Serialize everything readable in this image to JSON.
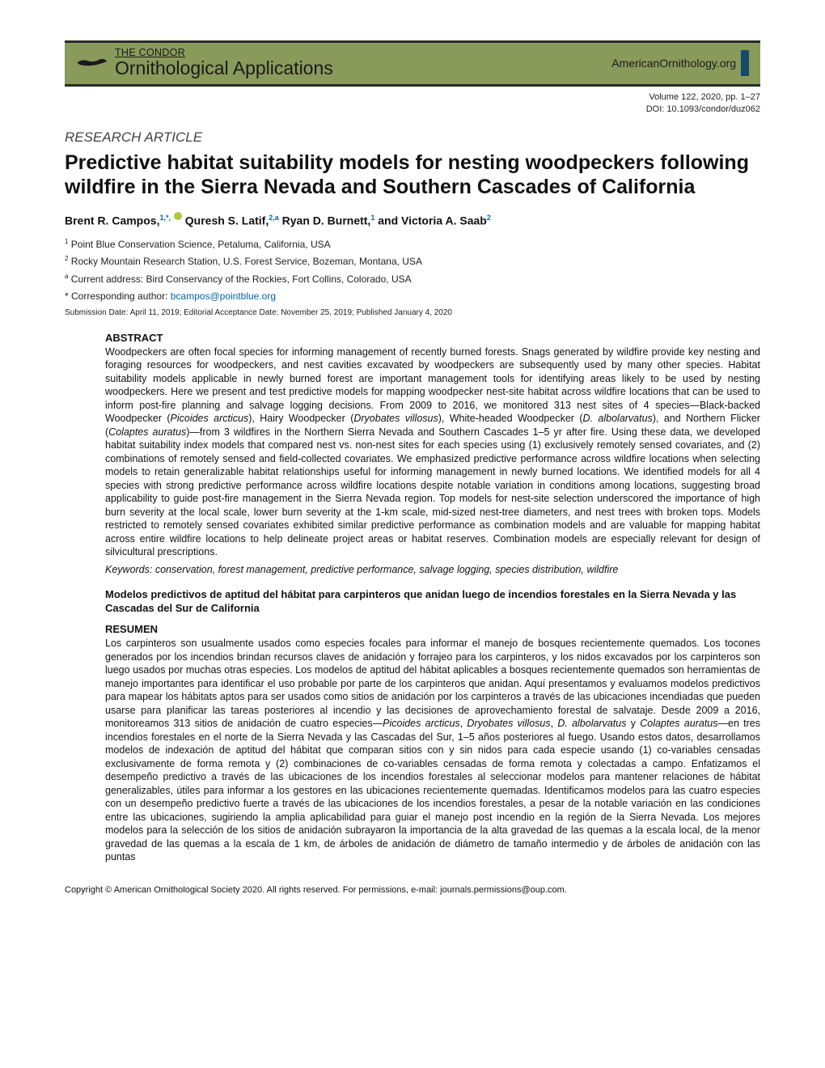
{
  "banner": {
    "journal_top": "THE CONDOR",
    "journal_sub": "Ornithological Applications",
    "url": "AmericanOrnithology.org"
  },
  "meta": {
    "volume_line": "Volume 122, 2020, pp. 1–27",
    "doi_line": "DOI: 10.1093/condor/duz062"
  },
  "article_type": "RESEARCH ARTICLE",
  "title": "Predictive habitat suitability models for nesting woodpeckers following wildfire in the Sierra Nevada and Southern Cascades of California",
  "authors_html": "Brent R. Campos,<sup>1,*,</sup> <span class='orcid'></span> Quresh S. Latif,<sup>2,a</sup> Ryan D. Burnett,<sup>1</sup> and Victoria A. Saab<sup>2</sup>",
  "affiliations": [
    "<sup>1</sup> Point Blue Conservation Science, Petaluma, California, USA",
    "<sup>2</sup> Rocky Mountain Research Station, U.S. Forest Service, Bozeman, Montana, USA",
    "<sup>a</sup> Current address: Bird Conservancy of the Rockies, Fort Collins, Colorado, USA",
    "* Corresponding author: <span class='email-link'>bcampos@pointblue.org</span>"
  ],
  "submission": "Submission Date: April 11, 2019; Editorial Acceptance Date: November 25, 2019; Published January 4, 2020",
  "abstract_heading": "ABSTRACT",
  "abstract_body": "Woodpeckers are often focal species for informing management of recently burned forests. Snags generated by wildfire provide key nesting and foraging resources for woodpeckers, and nest cavities excavated by woodpeckers are subsequently used by many other species. Habitat suitability models applicable in newly burned forest are important management tools for identifying areas likely to be used by nesting woodpeckers. Here we present and test predictive models for mapping woodpecker nest-site habitat across wildfire locations that can be used to inform post-fire planning and salvage logging decisions. From 2009 to 2016, we monitored 313 nest sites of 4 species—Black-backed Woodpecker (<em>Picoides arcticus</em>), Hairy Woodpecker (<em>Dryobates villosus</em>), White-headed Woodpecker (<em>D. albolarvatus</em>), and Northern Flicker (<em>Colaptes auratus</em>)—from 3 wildfires in the Northern Sierra Nevada and Southern Cascades 1–5 yr after fire. Using these data, we developed habitat suitability index models that compared nest vs. non-nest sites for each species using (1) exclusively remotely sensed covariates, and (2) combinations of remotely sensed and field-collected covariates. We emphasized predictive performance across wildfire locations when selecting models to retain generalizable habitat relationships useful for informing management in newly burned locations. We identified models for all 4 species with strong predictive performance across wildfire locations despite notable variation in conditions among locations, suggesting broad applicability to guide post-fire management in the Sierra Nevada region. Top models for nest-site selection underscored the importance of high burn severity at the local scale, lower burn severity at the 1-km scale, mid-sized nest-tree diameters, and nest trees with broken tops. Models restricted to remotely sensed covariates exhibited similar predictive performance as combination models and are valuable for mapping habitat across entire wildfire locations to help delineate project areas or habitat reserves. Combination models are especially relevant for design of silvicultural prescriptions.",
  "keywords": "Keywords: conservation, forest management, predictive performance, salvage logging, species distribution, wildfire",
  "alt_title": "Modelos predictivos de aptitud del hábitat para carpinteros que anidan luego de incendios forestales en la Sierra Nevada y las Cascadas del Sur de California",
  "resumen_heading": "RESUMEN",
  "resumen_body": "Los carpinteros son usualmente usados como especies focales para informar el manejo de bosques recientemente quemados. Los tocones generados por los incendios brindan recursos claves de anidación y forrajeo para los carpinteros, y los nidos excavados por los carpinteros son luego usados por muchas otras especies. Los modelos de aptitud del hábitat aplicables a bosques recientemente quemados son herramientas de manejo importantes para identificar el uso probable por parte de los carpinteros que anidan. Aquí presentamos y evaluamos modelos predictivos para mapear los hábitats aptos para ser usados como sitios de anidación por los carpinteros a través de las ubicaciones incendiadas que pueden usarse para planificar las tareas posteriores al incendio y las decisiones de aprovechamiento forestal de salvataje. Desde 2009 a 2016, monitoreamos 313 sitios de anidación de cuatro especies—<em>Picoides arcticus</em>, <em>Dryobates villosus</em>, <em>D. albolarvatus</em> y <em>Colaptes auratus</em>—en tres incendios forestales en el norte de la Sierra Nevada y las Cascadas del Sur, 1–5 años posteriores al fuego. Usando estos datos, desarrollamos modelos de indexación de aptitud del hábitat que comparan sitios con y sin nidos para cada especie usando (1) co-variables censadas exclusivamente de forma remota y (2) combinaciones de co-variables censadas de forma remota y colectadas a campo. Enfatizamos el desempeño predictivo a través de las ubicaciones de los incendios forestales al seleccionar modelos para mantener relaciones de hábitat generalizables, útiles para informar a los gestores en las ubicaciones recientemente quemadas. Identificamos modelos para las cuatro especies con un desempeño predictivo fuerte a través de las ubicaciones de los incendios forestales, a pesar de la notable variación en las condiciones entre las ubicaciones, sugiriendo la amplia aplicabilidad para guiar el manejo post incendio en la región de la Sierra Nevada. Los mejores modelos para la selección de los sitios de anidación subrayaron la importancia de la alta gravedad de las quemas a la escala local, de la menor gravedad de las quemas a la escala de 1 km, de árboles de anidación de diámetro de tamaño intermedio y de árboles de anidación con las puntas",
  "copyright": "Copyright © American Ornithological Society 2020. All rights reserved. For permissions, e-mail: journals.permissions@oup.com."
}
